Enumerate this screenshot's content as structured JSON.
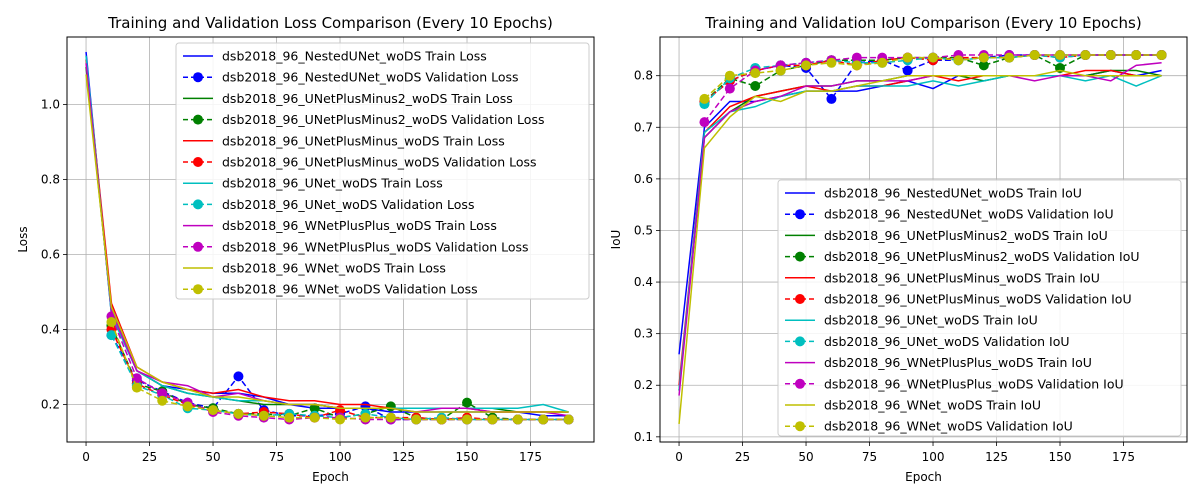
{
  "chart_data": [
    {
      "type": "line",
      "title": "Training and Validation Loss Comparison (Every 10 Epochs)",
      "xlabel": "Epoch",
      "ylabel": "Loss",
      "xlim": [
        -7.5,
        200
      ],
      "ylim": [
        0.1,
        1.18
      ],
      "xticks": [
        0,
        25,
        50,
        75,
        100,
        125,
        150,
        175
      ],
      "yticks": [
        0.2,
        0.4,
        0.6,
        0.8,
        1.0
      ],
      "ytick_labels": [
        "0.2",
        "0.4",
        "0.6",
        "0.8",
        "1.0"
      ],
      "grid": true,
      "legend_position": "upper right",
      "x": [
        0,
        10,
        20,
        30,
        40,
        50,
        60,
        70,
        80,
        90,
        100,
        110,
        120,
        130,
        140,
        150,
        160,
        170,
        180,
        190
      ],
      "series": [
        {
          "name": "dsb2018_96_NestedUNet_woDS Train Loss",
          "color": "#0000ff",
          "style": "solid",
          "values": [
            1.14,
            0.44,
            0.29,
            0.25,
            0.24,
            0.23,
            0.23,
            0.22,
            0.2,
            0.19,
            0.19,
            0.19,
            0.18,
            0.18,
            0.18,
            0.18,
            0.18,
            0.18,
            0.17,
            0.17
          ]
        },
        {
          "name": "dsb2018_96_NestedUNet_woDS Validation Loss",
          "color": "#0000ff",
          "style": "dashed",
          "values": [
            null,
            0.385,
            0.265,
            0.235,
            0.205,
            0.19,
            0.275,
            0.185,
            0.17,
            0.17,
            0.175,
            0.195,
            0.16,
            0.16,
            0.16,
            0.16,
            0.16,
            0.16,
            0.16,
            0.16
          ]
        },
        {
          "name": "dsb2018_96_UNetPlusMinus2_woDS Train Loss",
          "color": "#008000",
          "style": "solid",
          "values": [
            1.1,
            0.45,
            0.29,
            0.25,
            0.23,
            0.22,
            0.21,
            0.2,
            0.2,
            0.2,
            0.19,
            0.19,
            0.19,
            0.19,
            0.19,
            0.19,
            0.19,
            0.18,
            0.18,
            0.18
          ]
        },
        {
          "name": "dsb2018_96_UNetPlusMinus2_woDS Validation Loss",
          "color": "#008000",
          "style": "dashed",
          "values": [
            null,
            0.41,
            0.255,
            0.235,
            0.2,
            0.19,
            0.175,
            0.175,
            0.17,
            0.19,
            0.165,
            0.175,
            0.195,
            0.165,
            0.16,
            0.205,
            0.165,
            0.16,
            0.16,
            0.16
          ]
        },
        {
          "name": "dsb2018_96_UNetPlusMinus_woDS Train Loss",
          "color": "#ff0000",
          "style": "solid",
          "values": [
            1.12,
            0.47,
            0.3,
            0.26,
            0.24,
            0.23,
            0.24,
            0.22,
            0.21,
            0.21,
            0.2,
            0.2,
            0.19,
            0.19,
            0.19,
            0.19,
            0.18,
            0.18,
            0.18,
            0.18
          ]
        },
        {
          "name": "dsb2018_96_UNetPlusMinus_woDS Validation Loss",
          "color": "#ff0000",
          "style": "dashed",
          "values": [
            null,
            0.4,
            0.255,
            0.225,
            0.2,
            0.185,
            0.175,
            0.18,
            0.175,
            0.165,
            0.185,
            0.165,
            0.165,
            0.165,
            0.16,
            0.165,
            0.16,
            0.16,
            0.16,
            0.16
          ]
        },
        {
          "name": "dsb2018_96_UNet_woDS Train Loss",
          "color": "#00bfbf",
          "style": "solid",
          "values": [
            1.13,
            0.44,
            0.29,
            0.25,
            0.23,
            0.22,
            0.21,
            0.21,
            0.2,
            0.2,
            0.19,
            0.19,
            0.19,
            0.19,
            0.19,
            0.19,
            0.19,
            0.19,
            0.2,
            0.18
          ]
        },
        {
          "name": "dsb2018_96_UNet_woDS Validation Loss",
          "color": "#00bfbf",
          "style": "dashed",
          "values": [
            null,
            0.385,
            0.25,
            0.225,
            0.19,
            0.185,
            0.175,
            0.17,
            0.175,
            0.17,
            0.165,
            0.175,
            0.165,
            0.16,
            0.165,
            0.16,
            0.16,
            0.16,
            0.16,
            0.16
          ]
        },
        {
          "name": "dsb2018_96_WNetPlusPlus_woDS Train Loss",
          "color": "#bf00bf",
          "style": "solid",
          "values": [
            1.11,
            0.45,
            0.29,
            0.26,
            0.25,
            0.22,
            0.23,
            0.21,
            0.2,
            0.2,
            0.19,
            0.19,
            0.19,
            0.18,
            0.19,
            0.19,
            0.18,
            0.18,
            0.18,
            0.17
          ]
        },
        {
          "name": "dsb2018_96_WNetPlusPlus_woDS Validation Loss",
          "color": "#bf00bf",
          "style": "dashed",
          "values": [
            null,
            0.435,
            0.27,
            0.23,
            0.205,
            0.18,
            0.17,
            0.165,
            0.16,
            0.165,
            0.165,
            0.16,
            0.16,
            0.16,
            0.16,
            0.16,
            0.16,
            0.16,
            0.16,
            0.16
          ]
        },
        {
          "name": "dsb2018_96_WNet_woDS Train Loss",
          "color": "#bfbf00",
          "style": "solid",
          "values": [
            1.08,
            0.46,
            0.3,
            0.26,
            0.24,
            0.22,
            0.22,
            0.21,
            0.2,
            0.2,
            0.19,
            0.19,
            0.19,
            0.18,
            0.18,
            0.18,
            0.18,
            0.18,
            0.18,
            0.18
          ]
        },
        {
          "name": "dsb2018_96_WNet_woDS Validation Loss",
          "color": "#bfbf00",
          "style": "dashed",
          "values": [
            null,
            0.42,
            0.245,
            0.21,
            0.195,
            0.185,
            0.175,
            0.17,
            0.165,
            0.165,
            0.16,
            0.165,
            0.165,
            0.16,
            0.16,
            0.16,
            0.16,
            0.16,
            0.16,
            0.16
          ]
        }
      ]
    },
    {
      "type": "line",
      "title": "Training and Validation IoU Comparison (Every 10 Epochs)",
      "xlabel": "Epoch",
      "ylabel": "IoU",
      "xlim": [
        -7.5,
        200
      ],
      "ylim": [
        0.09,
        0.875
      ],
      "xticks": [
        0,
        25,
        50,
        75,
        100,
        125,
        150,
        175
      ],
      "yticks": [
        0.1,
        0.2,
        0.3,
        0.4,
        0.5,
        0.6,
        0.7,
        0.8
      ],
      "ytick_labels": [
        "0.1",
        "0.2",
        "0.3",
        "0.4",
        "0.5",
        "0.6",
        "0.7",
        "0.8"
      ],
      "grid": true,
      "legend_position": "lower right",
      "x": [
        0,
        10,
        20,
        30,
        40,
        50,
        60,
        70,
        80,
        90,
        100,
        110,
        120,
        130,
        140,
        150,
        160,
        170,
        180,
        190
      ],
      "series": [
        {
          "name": "dsb2018_96_NestedUNet_woDS Train IoU",
          "color": "#0000ff",
          "style": "solid",
          "values": [
            0.26,
            0.7,
            0.75,
            0.75,
            0.76,
            0.77,
            0.77,
            0.77,
            0.78,
            0.79,
            0.775,
            0.8,
            0.8,
            0.8,
            0.8,
            0.8,
            0.8,
            0.81,
            0.8,
            0.81
          ]
        },
        {
          "name": "dsb2018_96_NestedUNet_woDS Validation IoU",
          "color": "#0000ff",
          "style": "dashed",
          "values": [
            null,
            0.75,
            0.79,
            0.81,
            0.82,
            0.815,
            0.755,
            0.825,
            0.83,
            0.81,
            0.83,
            0.83,
            0.835,
            0.84,
            0.84,
            0.84,
            0.84,
            0.84,
            0.84,
            0.84
          ]
        },
        {
          "name": "dsb2018_96_UNetPlusMinus2_woDS Train IoU",
          "color": "#008000",
          "style": "solid",
          "values": [
            0.19,
            0.68,
            0.73,
            0.76,
            0.77,
            0.78,
            0.78,
            0.79,
            0.79,
            0.8,
            0.8,
            0.8,
            0.79,
            0.8,
            0.8,
            0.8,
            0.8,
            0.81,
            0.81,
            0.8
          ]
        },
        {
          "name": "dsb2018_96_UNetPlusMinus2_woDS Validation IoU",
          "color": "#008000",
          "style": "dashed",
          "values": [
            null,
            0.75,
            0.795,
            0.78,
            0.81,
            0.82,
            0.83,
            0.83,
            0.83,
            0.835,
            0.835,
            0.835,
            0.82,
            0.835,
            0.84,
            0.815,
            0.84,
            0.84,
            0.84,
            0.84
          ]
        },
        {
          "name": "dsb2018_96_UNetPlusMinus_woDS Train IoU",
          "color": "#ff0000",
          "style": "solid",
          "values": [
            0.2,
            0.69,
            0.74,
            0.76,
            0.77,
            0.78,
            0.77,
            0.78,
            0.78,
            0.79,
            0.8,
            0.79,
            0.8,
            0.8,
            0.8,
            0.8,
            0.81,
            0.81,
            0.8,
            0.8
          ]
        },
        {
          "name": "dsb2018_96_UNetPlusMinus_woDS Validation IoU",
          "color": "#ff0000",
          "style": "dashed",
          "values": [
            null,
            0.75,
            0.79,
            0.81,
            0.82,
            0.82,
            0.83,
            0.82,
            0.83,
            0.835,
            0.83,
            0.835,
            0.835,
            0.835,
            0.84,
            0.835,
            0.84,
            0.84,
            0.84,
            0.84
          ]
        },
        {
          "name": "dsb2018_96_UNet_woDS Train IoU",
          "color": "#00bfbf",
          "style": "solid",
          "values": [
            0.19,
            0.69,
            0.73,
            0.74,
            0.76,
            0.77,
            0.77,
            0.78,
            0.78,
            0.78,
            0.79,
            0.78,
            0.79,
            0.8,
            0.8,
            0.8,
            0.79,
            0.8,
            0.78,
            0.8
          ]
        },
        {
          "name": "dsb2018_96_UNet_woDS Validation IoU",
          "color": "#00bfbf",
          "style": "dashed",
          "values": [
            null,
            0.745,
            0.795,
            0.815,
            0.82,
            0.825,
            0.83,
            0.825,
            0.825,
            0.83,
            0.835,
            0.83,
            0.835,
            0.835,
            0.84,
            0.835,
            0.84,
            0.84,
            0.84,
            0.84
          ]
        },
        {
          "name": "dsb2018_96_WNetPlusPlus_woDS Train IoU",
          "color": "#bf00bf",
          "style": "solid",
          "values": [
            0.18,
            0.68,
            0.73,
            0.75,
            0.76,
            0.78,
            0.78,
            0.79,
            0.79,
            0.79,
            0.8,
            0.8,
            0.8,
            0.8,
            0.79,
            0.8,
            0.8,
            0.79,
            0.82,
            0.825
          ]
        },
        {
          "name": "dsb2018_96_WNetPlusPlus_woDS Validation IoU",
          "color": "#bf00bf",
          "style": "dashed",
          "values": [
            null,
            0.71,
            0.775,
            0.81,
            0.82,
            0.825,
            0.83,
            0.835,
            0.835,
            0.835,
            0.835,
            0.84,
            0.84,
            0.84,
            0.84,
            0.84,
            0.84,
            0.84,
            0.84,
            0.84
          ]
        },
        {
          "name": "dsb2018_96_WNet_woDS Train IoU",
          "color": "#bfbf00",
          "style": "solid",
          "values": [
            0.125,
            0.66,
            0.72,
            0.76,
            0.75,
            0.77,
            0.77,
            0.78,
            0.79,
            0.8,
            0.8,
            0.8,
            0.8,
            0.8,
            0.8,
            0.81,
            0.8,
            0.8,
            0.8,
            0.8
          ]
        },
        {
          "name": "dsb2018_96_WNet_woDS Validation IoU",
          "color": "#bfbf00",
          "style": "dashed",
          "values": [
            null,
            0.755,
            0.8,
            0.805,
            0.81,
            0.82,
            0.825,
            0.82,
            0.825,
            0.835,
            0.835,
            0.83,
            0.835,
            0.835,
            0.84,
            0.84,
            0.84,
            0.84,
            0.84,
            0.84
          ]
        }
      ]
    }
  ]
}
